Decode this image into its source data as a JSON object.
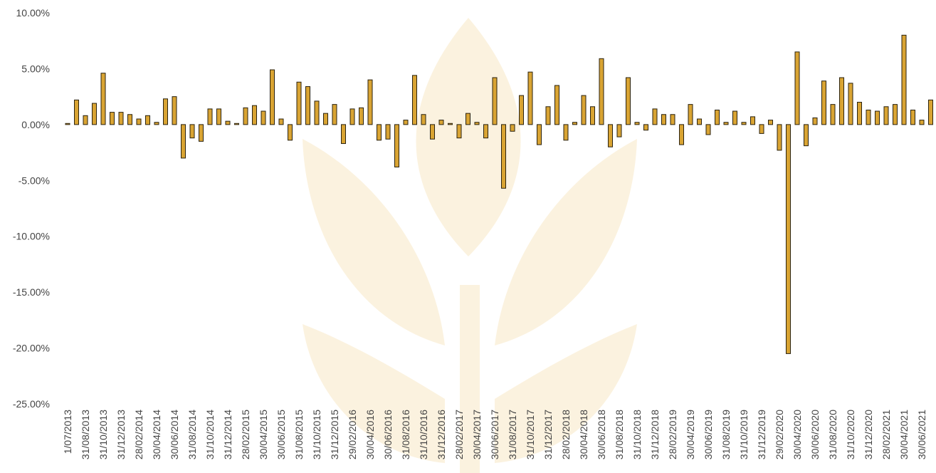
{
  "chart_data": {
    "type": "bar",
    "categories": [
      "1/07/2013",
      null,
      "31/08/2013",
      null,
      "31/10/2013",
      null,
      "31/12/2013",
      null,
      "28/02/2014",
      null,
      "30/04/2014",
      null,
      "30/06/2014",
      null,
      "31/08/2014",
      null,
      "31/10/2014",
      null,
      "31/12/2014",
      null,
      "28/02/2015",
      null,
      "30/04/2015",
      null,
      "30/06/2015",
      null,
      "31/08/2015",
      null,
      "31/10/2015",
      null,
      "31/12/2015",
      null,
      "29/02/2016",
      null,
      "30/04/2016",
      null,
      "30/06/2016",
      null,
      "31/08/2016",
      null,
      "31/10/2016",
      null,
      "31/12/2016",
      null,
      "28/02/2017",
      null,
      "30/04/2017",
      null,
      "30/06/2017",
      null,
      "31/08/2017",
      null,
      "31/10/2017",
      null,
      "31/12/2017",
      null,
      "28/02/2018",
      null,
      "30/04/2018",
      null,
      "30/06/2018",
      null,
      "31/08/2018",
      null,
      "31/10/2018",
      null,
      "31/12/2018",
      null,
      "28/02/2019",
      null,
      "30/04/2019",
      null,
      "30/06/2019",
      null,
      "31/08/2019",
      null,
      "31/10/2019",
      null,
      "31/12/2019",
      null,
      "29/02/2020",
      null,
      "30/04/2020",
      null,
      "30/06/2020",
      null,
      "31/08/2020",
      null,
      "31/10/2020",
      null,
      "31/12/2020",
      null,
      "28/02/2021",
      null,
      "30/04/2021",
      null,
      "30/06/2021",
      null
    ],
    "values": [
      0.1,
      2.2,
      0.8,
      1.9,
      4.6,
      1.1,
      1.1,
      0.9,
      0.5,
      0.8,
      0.2,
      2.3,
      2.5,
      -3.0,
      -1.2,
      -1.5,
      1.4,
      1.4,
      0.3,
      0.1,
      1.5,
      1.7,
      1.2,
      4.9,
      0.5,
      -1.4,
      3.8,
      3.4,
      2.1,
      1.0,
      1.8,
      -1.7,
      1.4,
      1.5,
      4.0,
      -1.4,
      -1.3,
      -3.8,
      0.4,
      4.4,
      0.9,
      -1.3,
      0.4,
      0.1,
      -1.2,
      1.0,
      0.2,
      -1.2,
      4.2,
      -5.7,
      -0.6,
      2.6,
      4.7,
      -1.8,
      1.6,
      3.5,
      -1.4,
      0.2,
      2.6,
      1.6,
      5.9,
      -2.0,
      -1.1,
      4.2,
      0.2,
      -0.5,
      1.4,
      0.9,
      0.9,
      -1.8,
      1.8,
      0.5,
      -0.9,
      1.3,
      0.2,
      1.2,
      0.2,
      0.7,
      -0.8,
      0.4,
      -2.3,
      -20.5,
      6.5,
      -1.9,
      0.6,
      3.9,
      1.8,
      4.2,
      3.7,
      2.0,
      1.3,
      1.2,
      1.6,
      1.8,
      8.0,
      1.3,
      0.4,
      2.2
    ],
    "color": "#d9a433",
    "ylim": [
      -25,
      10
    ],
    "yticks": [
      {
        "value": 10,
        "label": "10.00%"
      },
      {
        "value": 5,
        "label": "5.00%"
      },
      {
        "value": 0,
        "label": "0.00%"
      },
      {
        "value": -5,
        "label": "-5.00%"
      },
      {
        "value": -10,
        "label": "-10.00%"
      },
      {
        "value": -15,
        "label": "-15.00%"
      },
      {
        "value": -20,
        "label": "-20.00%"
      },
      {
        "value": -25,
        "label": "-25.00%"
      }
    ],
    "grid": false
  }
}
